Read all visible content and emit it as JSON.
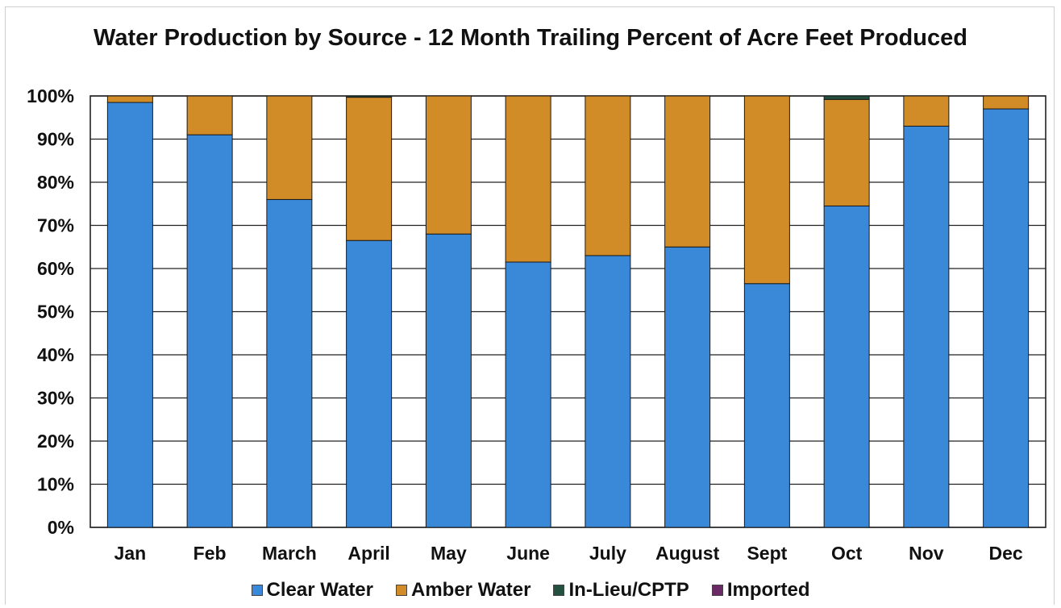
{
  "chart_data": {
    "type": "bar",
    "stacked": true,
    "title": "Water Production by Source - 12 Month Trailing Percent of Acre Feet Produced",
    "categories": [
      "Jan",
      "Feb",
      "March",
      "April",
      "May",
      "June",
      "July",
      "August",
      "Sept",
      "Oct",
      "Nov",
      "Dec"
    ],
    "series": [
      {
        "name": "Clear Water",
        "color": "#3a88d8",
        "values": [
          98.5,
          91,
          76,
          66.5,
          68,
          61.5,
          63,
          65,
          56.5,
          74.5,
          93,
          97
        ]
      },
      {
        "name": "Amber Water",
        "color": "#d18c28",
        "values": [
          1.5,
          9,
          24,
          33.2,
          32,
          38.5,
          37,
          35,
          43.5,
          24.7,
          7,
          3
        ]
      },
      {
        "name": "In-Lieu/CPTP",
        "color": "#24513f",
        "values": [
          0,
          0,
          0,
          0.3,
          0,
          0,
          0,
          0,
          0,
          0.8,
          0,
          0
        ]
      },
      {
        "name": "Imported",
        "color": "#6a2a66",
        "values": [
          0,
          0,
          0,
          0,
          0,
          0,
          0,
          0,
          0,
          0,
          0,
          0
        ]
      }
    ],
    "yticks": [
      "0%",
      "10%",
      "20%",
      "30%",
      "40%",
      "50%",
      "60%",
      "70%",
      "80%",
      "90%",
      "100%"
    ],
    "ylim": [
      0,
      100
    ],
    "grid": true,
    "legend_position": "bottom"
  }
}
